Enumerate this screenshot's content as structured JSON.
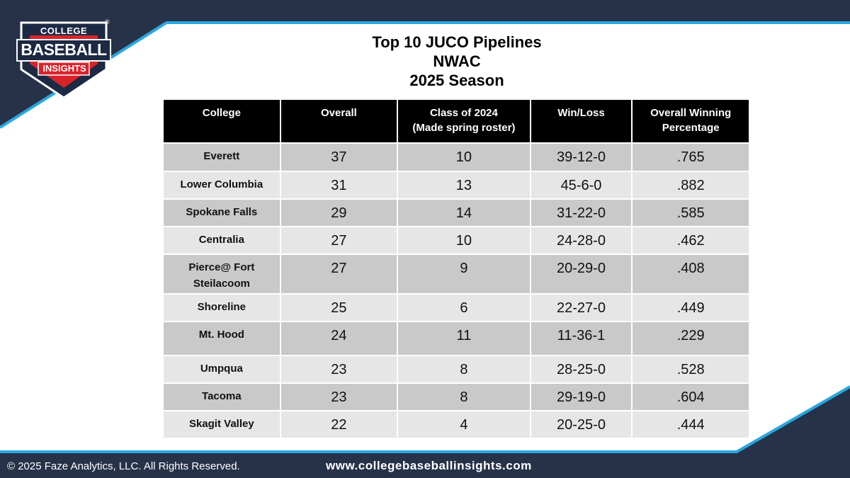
{
  "brand": {
    "logo_top": "COLLEGE",
    "logo_middle": "BASEBALL",
    "logo_bottom": "INSIGHTS",
    "registered_mark": "®"
  },
  "colors": {
    "navy": "#263248",
    "accent_blue": "#2aa7e0",
    "red": "#d7242b",
    "header_black": "#000000",
    "row_dark": "#c9c9c9",
    "row_light": "#e6e6e6"
  },
  "title": {
    "line1": "Top 10 JUCO Pipelines",
    "line2": "NWAC",
    "line3": "2025 Season"
  },
  "table": {
    "headers": [
      {
        "line1": "College",
        "line2": ""
      },
      {
        "line1": "Overall",
        "line2": ""
      },
      {
        "line1": "Class of 2024",
        "line2": "(Made spring roster)"
      },
      {
        "line1": "Win/Loss",
        "line2": ""
      },
      {
        "line1": "Overall Winning",
        "line2": "Percentage"
      }
    ],
    "rows": [
      {
        "college_line1": "Everett",
        "college_line2": "",
        "overall": "37",
        "class_2024": "10",
        "win_loss": "39-12-0",
        "pct": ".765"
      },
      {
        "college_line1": "Lower Columbia",
        "college_line2": "",
        "overall": "31",
        "class_2024": "13",
        "win_loss": "45-6-0",
        "pct": ".882"
      },
      {
        "college_line1": "Spokane Falls",
        "college_line2": "",
        "overall": "29",
        "class_2024": "14",
        "win_loss": "31-22-0",
        "pct": ".585"
      },
      {
        "college_line1": "Centralia",
        "college_line2": "",
        "overall": "27",
        "class_2024": "10",
        "win_loss": "24-28-0",
        "pct": ".462"
      },
      {
        "college_line1": "Pierce@ Fort",
        "college_line2": "Steilacoom",
        "overall": "27",
        "class_2024": "9",
        "win_loss": "20-29-0",
        "pct": ".408"
      },
      {
        "college_line1": "Shoreline",
        "college_line2": "",
        "overall": "25",
        "class_2024": "6",
        "win_loss": "22-27-0",
        "pct": ".449"
      },
      {
        "college_line1": "Mt. Hood",
        "college_line2": "",
        "overall": "24",
        "class_2024": "11",
        "win_loss": "11-36-1",
        "pct": ".229"
      },
      {
        "college_line1": "Umpqua",
        "college_line2": "",
        "overall": "23",
        "class_2024": "8",
        "win_loss": "28-25-0",
        "pct": ".528"
      },
      {
        "college_line1": "Tacoma",
        "college_line2": "",
        "overall": "23",
        "class_2024": "8",
        "win_loss": "29-19-0",
        "pct": ".604"
      },
      {
        "college_line1": "Skagit Valley",
        "college_line2": "",
        "overall": "22",
        "class_2024": "4",
        "win_loss": "20-25-0",
        "pct": ".444"
      }
    ]
  },
  "footer": {
    "copyright": "© 2025 Faze Analytics, LLC. All Rights Reserved.",
    "url": "www.collegebaseballinsights.com"
  }
}
